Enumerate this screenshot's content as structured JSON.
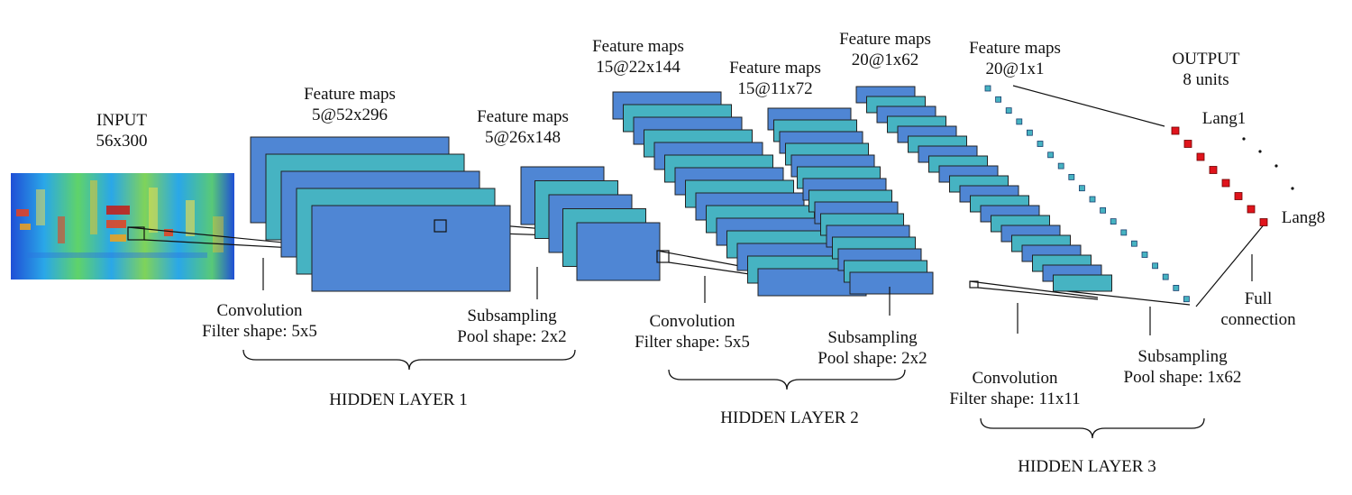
{
  "colors": {
    "map_blue": "#4f86d4",
    "map_teal": "#46b3c2",
    "output_unit": "#e0141c",
    "input_unit": "#46b3c2",
    "line": "#111111"
  },
  "input": {
    "title": "INPUT",
    "size": "56x300"
  },
  "fm1": {
    "title": "Feature maps",
    "size": "5@52x296"
  },
  "fm2": {
    "title": "Feature maps",
    "size": "5@26x148"
  },
  "fm3": {
    "title": "Feature maps",
    "size": "15@22x144"
  },
  "fm4": {
    "title": "Feature maps",
    "size": "15@11x72"
  },
  "fm5": {
    "title": "Feature maps",
    "size": "20@1x62"
  },
  "fm6": {
    "title": "Feature maps",
    "size": "20@1x1"
  },
  "output": {
    "title": "OUTPUT",
    "units": "8 units",
    "first": "Lang1",
    "last": "Lang8"
  },
  "ops": {
    "conv1": {
      "name": "Convolution",
      "param": "Filter shape: 5x5"
    },
    "sub1": {
      "name": "Subsampling",
      "param": "Pool shape: 2x2"
    },
    "conv2": {
      "name": "Convolution",
      "param": "Filter shape: 5x5"
    },
    "sub2": {
      "name": "Subsampling",
      "param": "Pool shape: 2x2"
    },
    "conv3": {
      "name": "Convolution",
      "param": "Filter shape: 11x11"
    },
    "sub3": {
      "name": "Subsampling",
      "param": "Pool shape: 1x62"
    },
    "full": {
      "name": "Full",
      "param": "connection"
    }
  },
  "layers": {
    "h1": "HIDDEN LAYER 1",
    "h2": "HIDDEN LAYER 2",
    "h3": "HIDDEN LAYER 3"
  }
}
